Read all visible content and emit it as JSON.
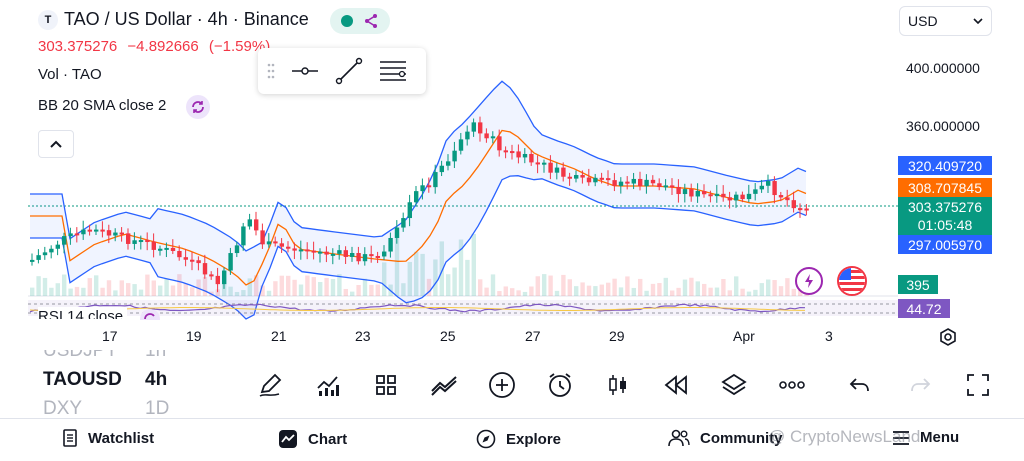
{
  "header": {
    "symbol_logo": "T",
    "title": "TAO / US Dollar · 4h · Binance",
    "status_icons": [
      "market-open-dot-icon",
      "share-nodes-icon"
    ],
    "price": "303.375276",
    "change": "−4.892666",
    "change_pct": "(−1.59%)",
    "volume_label": "Vol · TAO",
    "bb_label": "BB 20 SMA close 2",
    "rsi_label": "RSI 14 close"
  },
  "currency": {
    "value": "USD"
  },
  "price_axis": {
    "ticks": [
      "400.000000",
      "360.000000"
    ],
    "bb_upper": "320.409720",
    "bb_basis": "308.707845",
    "last_price": "303.375276",
    "countdown": "01:05:48",
    "bb_lower": "297.005970",
    "volume": "395",
    "rsi": "44.72"
  },
  "time_axis": [
    "17",
    "19",
    "21",
    "23",
    "25",
    "27",
    "29",
    "Apr",
    "3"
  ],
  "symbols": [
    {
      "symbol": "USDJPY",
      "interval": "1h"
    },
    {
      "symbol": "TAOUSD",
      "interval": "4h"
    },
    {
      "symbol": "DXY",
      "interval": "1D"
    }
  ],
  "toolbar": [
    "pen-icon",
    "chart-indicators-icon",
    "layout-grid-icon",
    "compare-icon",
    "add-icon",
    "alarm-icon",
    "candles-icon",
    "replay-icon",
    "layers-icon",
    "more-icon",
    "undo-icon",
    "redo-icon",
    "fullscreen-icon"
  ],
  "nav": {
    "watchlist": "Watchlist",
    "chart": "Chart",
    "explore": "Explore",
    "community": "Community",
    "menu": "Menu"
  },
  "watermark": "@ CryptoNewsLand",
  "colors": {
    "up": "#089981",
    "down": "#f23645",
    "bb_band": "#2962ff",
    "bb_basis": "#ff6d00",
    "rsi": "#7e57c2",
    "last_price_bg": "#089981",
    "bb_tag_bg": "#2962ff",
    "basis_tag_bg": "#ff6d00",
    "volume_tag_bg": "#089981",
    "rsi_tag_bg": "#7e57c2"
  },
  "chart_data": {
    "type": "candlestick",
    "series": [
      {
        "name": "Vol · TAO"
      },
      {
        "name": "BB 20 SMA close 2"
      },
      {
        "name": "RSI 14 close"
      }
    ],
    "x_ticks": [
      "17",
      "19",
      "21",
      "23",
      "25",
      "27",
      "29",
      "Apr",
      "3"
    ],
    "y_ticks": [
      400,
      360
    ],
    "last": 303.375276
  }
}
